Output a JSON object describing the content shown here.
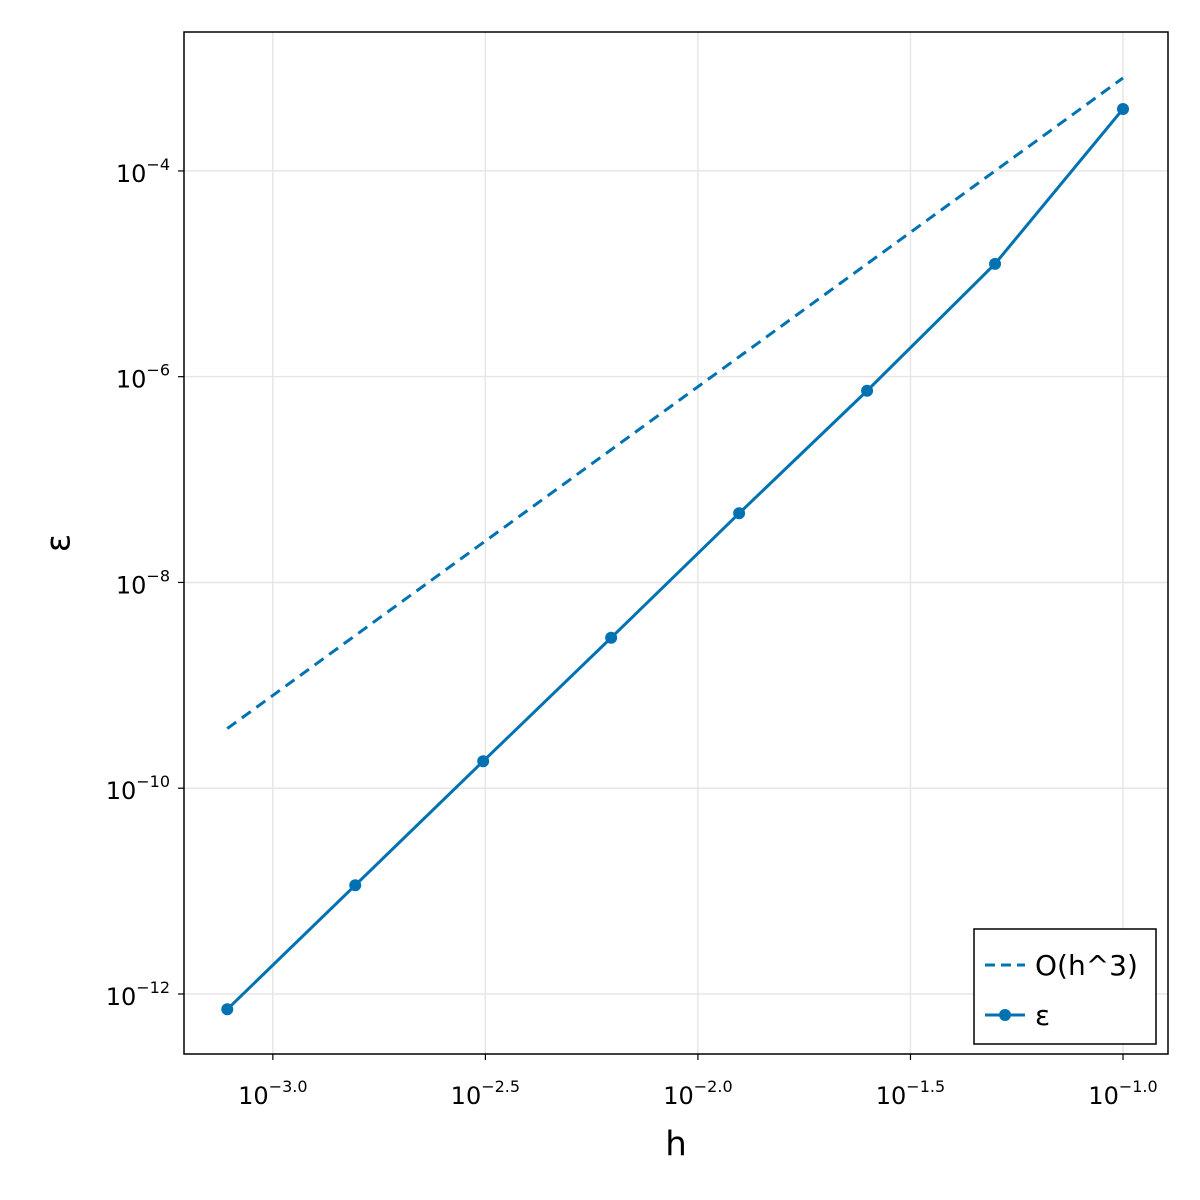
{
  "chart_data": {
    "type": "line",
    "xlabel": "h",
    "ylabel": "ε",
    "x": [
      0.00078125,
      0.0015625,
      0.003125,
      0.00625,
      0.0125,
      0.025,
      0.05,
      0.1
    ],
    "series": [
      {
        "name": "O(h^3)",
        "color": "#0072b2",
        "line_style": "dashed",
        "marker": false,
        "values": [
          3.8e-10,
          3.05e-09,
          2.44e-08,
          1.95e-07,
          1.56e-06,
          1.25e-05,
          0.0001,
          0.0008
        ]
      },
      {
        "name": "ε",
        "color": "#0072b2",
        "line_style": "solid",
        "marker": true,
        "values": [
          7.1e-13,
          1.14e-11,
          1.83e-10,
          2.9e-09,
          4.7e-08,
          7.3e-07,
          1.25e-05,
          0.0004
        ]
      }
    ],
    "xscale": "log",
    "yscale": "log",
    "xlim": [
      0.000618,
      0.1276
    ],
    "ylim": [
      2.61e-13,
      0.00224
    ],
    "xticks": [
      {
        "value": 0.001,
        "label": "10−3.0"
      },
      {
        "value": 0.0031623,
        "label": "10−2.5"
      },
      {
        "value": 0.01,
        "label": "10−2.0"
      },
      {
        "value": 0.031623,
        "label": "10−1.5"
      },
      {
        "value": 0.1,
        "label": "10−1.0"
      }
    ],
    "yticks": [
      {
        "value": 1e-12,
        "label": "10−12"
      },
      {
        "value": 1e-10,
        "label": "10−10"
      },
      {
        "value": 1e-08,
        "label": "10−8"
      },
      {
        "value": 1e-06,
        "label": "10−6"
      },
      {
        "value": 0.0001,
        "label": "10−4"
      }
    ],
    "grid": true,
    "legend_position": "bottom-right"
  }
}
